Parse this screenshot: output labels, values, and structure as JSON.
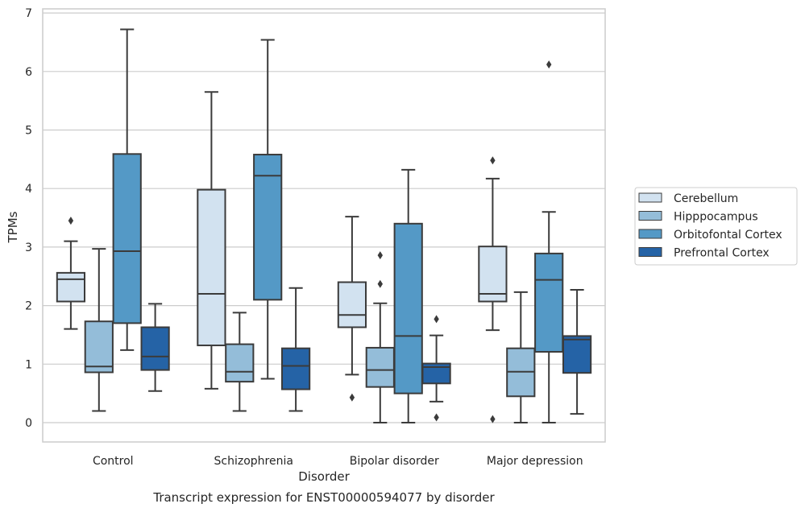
{
  "chart_data": {
    "type": "boxplot",
    "xlabel": "Disorder",
    "ylabel": "TPMs",
    "caption": "Transcript expression for ENST00000594077 by disorder",
    "ylim": [
      -0.33,
      7.07
    ],
    "yticks": [
      0,
      1,
      2,
      3,
      4,
      5,
      6,
      7
    ],
    "grid": true,
    "legend_position": "right",
    "categories": [
      "Control",
      "Schizophrenia",
      "Bipolar disorder",
      "Major depression"
    ],
    "series": [
      {
        "name": "Cerebellum",
        "color": "#d2e2f0",
        "boxes": [
          {
            "whislo": 1.6,
            "q1": 2.07,
            "med": 2.45,
            "q3": 2.56,
            "whishi": 3.1,
            "fliers": [
              3.45
            ]
          },
          {
            "whislo": 0.58,
            "q1": 1.32,
            "med": 2.2,
            "q3": 3.98,
            "whishi": 5.65,
            "fliers": []
          },
          {
            "whislo": 0.82,
            "q1": 1.63,
            "med": 1.84,
            "q3": 2.4,
            "whishi": 3.52,
            "fliers": [
              0.43
            ]
          },
          {
            "whislo": 1.58,
            "q1": 2.07,
            "med": 2.2,
            "q3": 3.01,
            "whishi": 4.17,
            "fliers": [
              4.48,
              0.06
            ]
          }
        ]
      },
      {
        "name": "Hipppocampus",
        "color": "#94bdd9",
        "boxes": [
          {
            "whislo": 0.2,
            "q1": 0.86,
            "med": 0.96,
            "q3": 1.73,
            "whishi": 2.97,
            "fliers": []
          },
          {
            "whislo": 0.2,
            "q1": 0.7,
            "med": 0.87,
            "q3": 1.34,
            "whishi": 1.88,
            "fliers": []
          },
          {
            "whislo": 0.0,
            "q1": 0.61,
            "med": 0.9,
            "q3": 1.28,
            "whishi": 2.04,
            "fliers": [
              2.86,
              2.37
            ]
          },
          {
            "whislo": 0.0,
            "q1": 0.45,
            "med": 0.87,
            "q3": 1.27,
            "whishi": 2.23,
            "fliers": []
          }
        ]
      },
      {
        "name": "Orbitofontal Cortex",
        "color": "#5499c6",
        "boxes": [
          {
            "whislo": 1.24,
            "q1": 1.7,
            "med": 2.93,
            "q3": 4.59,
            "whishi": 6.72,
            "fliers": []
          },
          {
            "whislo": 0.75,
            "q1": 2.1,
            "med": 4.22,
            "q3": 4.58,
            "whishi": 6.54,
            "fliers": []
          },
          {
            "whislo": 0.0,
            "q1": 0.5,
            "med": 1.48,
            "q3": 3.4,
            "whishi": 4.32,
            "fliers": []
          },
          {
            "whislo": 0.0,
            "q1": 1.21,
            "med": 2.44,
            "q3": 2.89,
            "whishi": 3.6,
            "fliers": [
              6.12
            ]
          }
        ]
      },
      {
        "name": "Prefrontal Cortex",
        "color": "#2563a6",
        "boxes": [
          {
            "whislo": 0.54,
            "q1": 0.9,
            "med": 1.13,
            "q3": 1.63,
            "whishi": 2.03,
            "fliers": []
          },
          {
            "whislo": 0.2,
            "q1": 0.57,
            "med": 0.97,
            "q3": 1.27,
            "whishi": 2.3,
            "fliers": []
          },
          {
            "whislo": 0.36,
            "q1": 0.67,
            "med": 0.95,
            "q3": 1.01,
            "whishi": 1.49,
            "fliers": [
              1.77,
              0.09
            ]
          },
          {
            "whislo": 0.15,
            "q1": 0.85,
            "med": 1.42,
            "q3": 1.48,
            "whishi": 2.27,
            "fliers": []
          }
        ]
      }
    ]
  }
}
